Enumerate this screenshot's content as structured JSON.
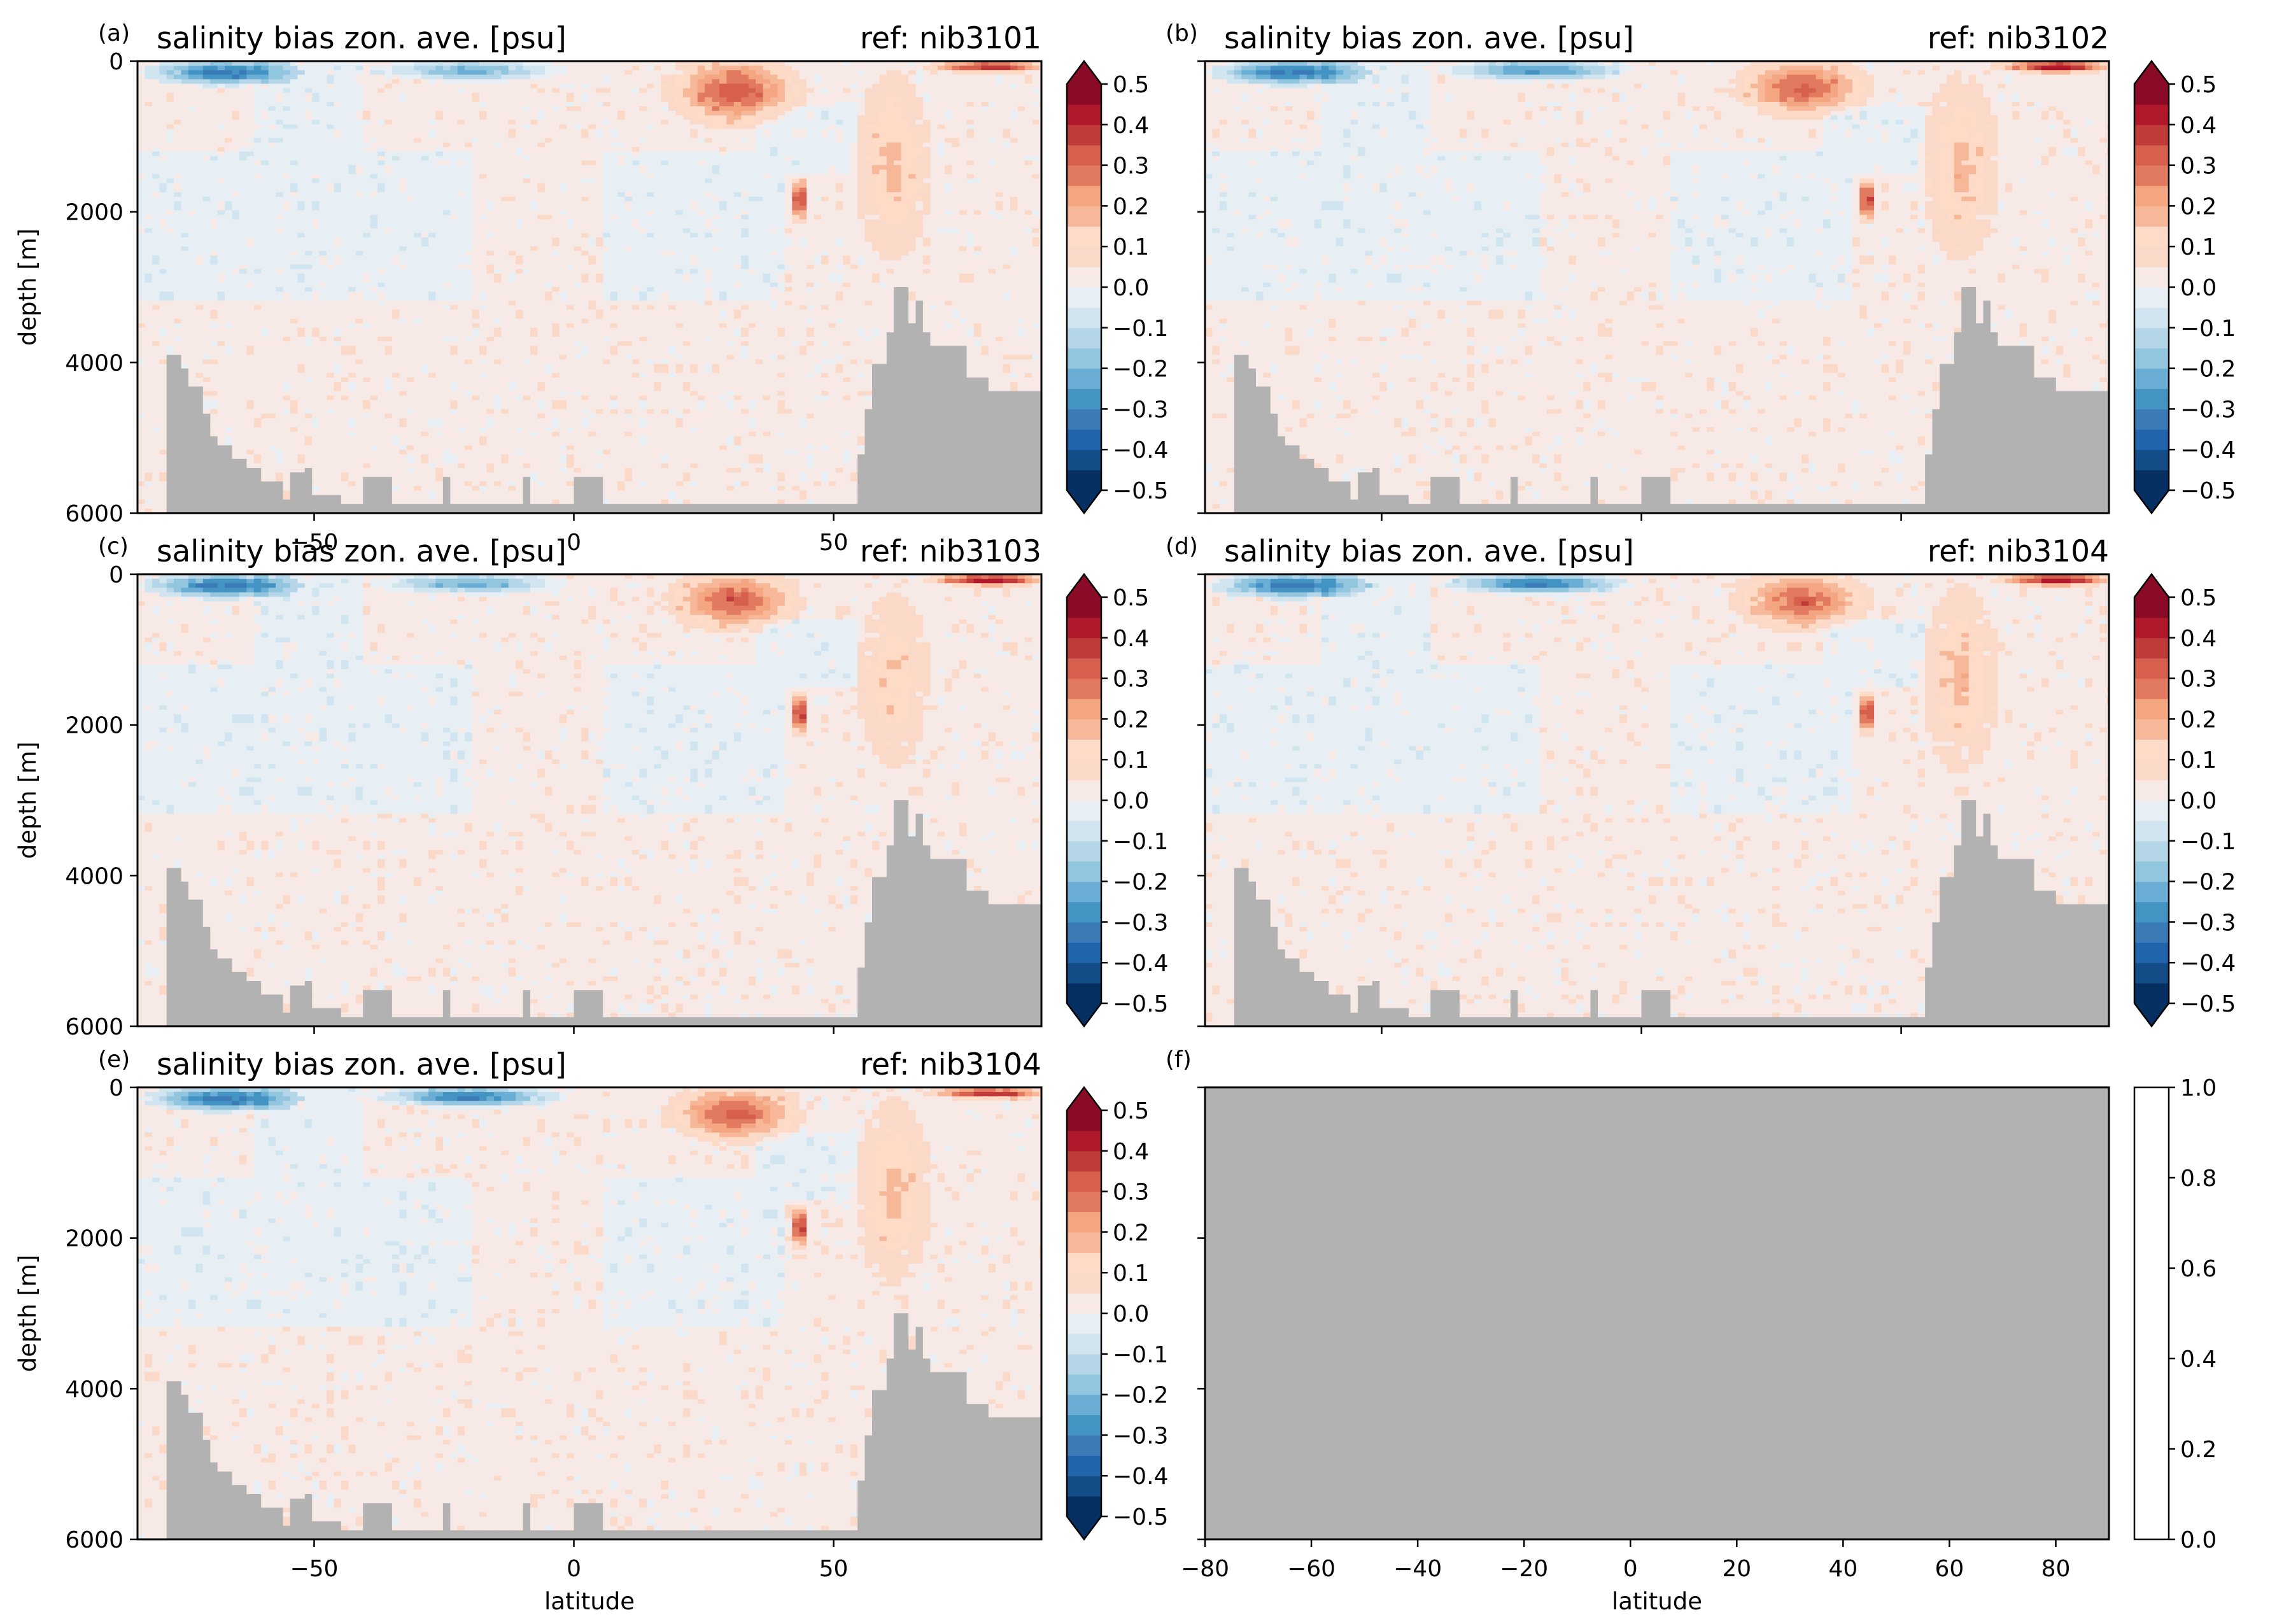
{
  "figure": {
    "background": "#ffffff",
    "land_color": "#b2b2b2",
    "frame_color": "#000000"
  },
  "chart_data": [
    {
      "panel": "(a)",
      "type": "heatmap",
      "title": "salinity bias zon. ave. [psu]",
      "title_right": "ref: nib3101",
      "ylabel": "depth [m]",
      "xlabel": "",
      "xlim": [
        -84,
        90
      ],
      "ylim": [
        6000,
        0
      ],
      "xticks": [
        -50,
        0,
        50
      ],
      "xtick_labels": [
        "−50",
        "0",
        "50"
      ],
      "yticks": [
        0,
        2000,
        4000,
        6000
      ],
      "ytick_labels": [
        "0",
        "2000",
        "4000",
        "6000"
      ],
      "colorbar": {
        "range": [
          -0.5,
          0.5
        ],
        "extend": "both",
        "ticks": [
          "0.5",
          "0.4",
          "0.3",
          "0.2",
          "0.1",
          "0.0",
          "−0.1",
          "−0.2",
          "−0.3",
          "−0.4",
          "−0.5"
        ]
      },
      "features": [
        {
          "name": "NH subtropical salty surface",
          "lat": [
            20,
            42
          ],
          "depth": [
            0,
            800
          ],
          "value": 0.32
        },
        {
          "name": "Mediterranean outflow",
          "lat": [
            42,
            45
          ],
          "depth": [
            1600,
            2100
          ],
          "value": 0.4
        },
        {
          "name": "Arctic surface",
          "lat": [
            70,
            90
          ],
          "depth": [
            0,
            150
          ],
          "value": 0.4
        },
        {
          "name": "Southern Ocean fresh surface",
          "lat": [
            -80,
            -55
          ],
          "depth": [
            0,
            300
          ],
          "value": -0.35
        },
        {
          "name": "SH fresh subsurface",
          "lat": [
            -35,
            -5
          ],
          "depth": [
            0,
            250
          ],
          "value": -0.25
        },
        {
          "name": "NH deep salty plume",
          "lat": [
            55,
            68
          ],
          "depth": [
            300,
            2500
          ],
          "value": 0.15
        }
      ]
    },
    {
      "panel": "(b)",
      "type": "heatmap",
      "title": "salinity bias zon. ave. [psu]",
      "title_right": "ref: nib3102",
      "ylabel": "",
      "xlabel": "",
      "xlim": [
        -84,
        90
      ],
      "ylim": [
        6000,
        0
      ],
      "xticks": [
        -50,
        0,
        50
      ],
      "xtick_labels": [],
      "yticks": [
        0,
        2000,
        4000,
        6000
      ],
      "ytick_labels": [],
      "colorbar": {
        "range": [
          -0.5,
          0.5
        ],
        "extend": "both",
        "ticks": [
          "0.5",
          "0.4",
          "0.3",
          "0.2",
          "0.1",
          "0.0",
          "−0.1",
          "−0.2",
          "−0.3",
          "−0.4",
          "−0.5"
        ]
      },
      "features": [
        {
          "name": "NH subtropical salty surface",
          "lat": [
            20,
            42
          ],
          "depth": [
            0,
            700
          ],
          "value": 0.3
        },
        {
          "name": "Mediterranean outflow",
          "lat": [
            42,
            45
          ],
          "depth": [
            1600,
            2100
          ],
          "value": 0.4
        },
        {
          "name": "Arctic surface",
          "lat": [
            70,
            90
          ],
          "depth": [
            0,
            150
          ],
          "value": 0.45
        },
        {
          "name": "Southern Ocean fresh surface",
          "lat": [
            -80,
            -55
          ],
          "depth": [
            0,
            300
          ],
          "value": -0.35
        },
        {
          "name": "SH fresh subsurface",
          "lat": [
            -35,
            -5
          ],
          "depth": [
            0,
            250
          ],
          "value": -0.3
        },
        {
          "name": "NH deep salty plume",
          "lat": [
            55,
            68
          ],
          "depth": [
            300,
            2500
          ],
          "value": 0.15
        }
      ]
    },
    {
      "panel": "(c)",
      "type": "heatmap",
      "title": "salinity bias zon. ave. [psu]",
      "title_right": "ref: nib3103",
      "ylabel": "depth [m]",
      "xlabel": "",
      "xlim": [
        -84,
        90
      ],
      "ylim": [
        6000,
        0
      ],
      "xticks": [
        -50,
        0,
        50
      ],
      "xtick_labels": [],
      "yticks": [
        0,
        2000,
        4000,
        6000
      ],
      "ytick_labels": [
        "0",
        "2000",
        "4000",
        "6000"
      ],
      "colorbar": {
        "range": [
          -0.5,
          0.5
        ],
        "extend": "both",
        "ticks": [
          "0.5",
          "0.4",
          "0.3",
          "0.2",
          "0.1",
          "0.0",
          "−0.1",
          "−0.2",
          "−0.3",
          "−0.4",
          "−0.5"
        ]
      },
      "features": [
        {
          "name": "NH subtropical salty surface",
          "lat": [
            20,
            42
          ],
          "depth": [
            0,
            700
          ],
          "value": 0.3
        },
        {
          "name": "Mediterranean outflow",
          "lat": [
            42,
            45
          ],
          "depth": [
            1600,
            2100
          ],
          "value": 0.4
        },
        {
          "name": "Arctic surface",
          "lat": [
            70,
            90
          ],
          "depth": [
            0,
            150
          ],
          "value": 0.45
        },
        {
          "name": "Southern Ocean fresh surface",
          "lat": [
            -80,
            -55
          ],
          "depth": [
            0,
            300
          ],
          "value": -0.35
        },
        {
          "name": "SH fresh subsurface",
          "lat": [
            -35,
            -5
          ],
          "depth": [
            0,
            250
          ],
          "value": -0.25
        },
        {
          "name": "NH deep salty plume",
          "lat": [
            55,
            68
          ],
          "depth": [
            300,
            2500
          ],
          "value": 0.12
        }
      ]
    },
    {
      "panel": "(d)",
      "type": "heatmap",
      "title": "salinity bias zon. ave. [psu]",
      "title_right": "ref: nib3104",
      "ylabel": "",
      "xlabel": "",
      "xlim": [
        -84,
        90
      ],
      "ylim": [
        6000,
        0
      ],
      "xticks": [
        -50,
        0,
        50
      ],
      "xtick_labels": [],
      "yticks": [
        0,
        2000,
        4000,
        6000
      ],
      "ytick_labels": [],
      "colorbar": {
        "range": [
          -0.5,
          0.5
        ],
        "extend": "both",
        "ticks": [
          "0.5",
          "0.4",
          "0.3",
          "0.2",
          "0.1",
          "0.0",
          "−0.1",
          "−0.2",
          "−0.3",
          "−0.4",
          "−0.5"
        ]
      },
      "features": [
        {
          "name": "NH subtropical salty surface",
          "lat": [
            20,
            42
          ],
          "depth": [
            0,
            700
          ],
          "value": 0.3
        },
        {
          "name": "Mediterranean outflow",
          "lat": [
            42,
            45
          ],
          "depth": [
            1600,
            2100
          ],
          "value": 0.4
        },
        {
          "name": "Arctic surface",
          "lat": [
            70,
            90
          ],
          "depth": [
            0,
            150
          ],
          "value": 0.45
        },
        {
          "name": "Southern Ocean fresh surface",
          "lat": [
            -80,
            -55
          ],
          "depth": [
            0,
            300
          ],
          "value": -0.35
        },
        {
          "name": "SH fresh subsurface",
          "lat": [
            -35,
            -5
          ],
          "depth": [
            0,
            250
          ],
          "value": -0.35
        },
        {
          "name": "NH deep salty plume",
          "lat": [
            55,
            68
          ],
          "depth": [
            300,
            2500
          ],
          "value": 0.15
        }
      ]
    },
    {
      "panel": "(e)",
      "type": "heatmap",
      "title": "salinity bias zon. ave. [psu]",
      "title_right": "ref: nib3104",
      "ylabel": "depth [m]",
      "xlabel": "latitude",
      "xlim": [
        -84,
        90
      ],
      "ylim": [
        6000,
        0
      ],
      "xticks": [
        -50,
        0,
        50
      ],
      "xtick_labels": [
        "−50",
        "0",
        "50"
      ],
      "yticks": [
        0,
        2000,
        4000,
        6000
      ],
      "ytick_labels": [
        "0",
        "2000",
        "4000",
        "6000"
      ],
      "colorbar": {
        "range": [
          -0.5,
          0.5
        ],
        "extend": "both",
        "ticks": [
          "0.5",
          "0.4",
          "0.3",
          "0.2",
          "0.1",
          "0.0",
          "−0.1",
          "−0.2",
          "−0.3",
          "−0.4",
          "−0.5"
        ]
      },
      "features": [
        {
          "name": "NH subtropical salty surface",
          "lat": [
            20,
            42
          ],
          "depth": [
            0,
            700
          ],
          "value": 0.3
        },
        {
          "name": "Mediterranean outflow",
          "lat": [
            42,
            45
          ],
          "depth": [
            1600,
            2100
          ],
          "value": 0.4
        },
        {
          "name": "Arctic surface",
          "lat": [
            70,
            90
          ],
          "depth": [
            0,
            150
          ],
          "value": 0.4
        },
        {
          "name": "Southern Ocean fresh surface",
          "lat": [
            -80,
            -55
          ],
          "depth": [
            0,
            300
          ],
          "value": -0.35
        },
        {
          "name": "SH fresh subsurface",
          "lat": [
            -35,
            -5
          ],
          "depth": [
            0,
            250
          ],
          "value": -0.35
        },
        {
          "name": "NH deep salty plume",
          "lat": [
            55,
            68
          ],
          "depth": [
            300,
            2500
          ],
          "value": 0.15
        }
      ]
    },
    {
      "panel": "(f)",
      "type": "heatmap",
      "title": "",
      "title_right": "",
      "ylabel": "",
      "xlabel": "latitude",
      "xlim": [
        -80,
        90
      ],
      "ylim": [
        6000,
        0
      ],
      "xticks": [
        -80,
        -60,
        -40,
        -20,
        0,
        20,
        40,
        60,
        80
      ],
      "xtick_labels": [
        "−80",
        "−60",
        "−40",
        "−20",
        "0",
        "20",
        "40",
        "60",
        "80"
      ],
      "yticks": [
        0,
        2000,
        4000,
        6000
      ],
      "ytick_labels": [],
      "empty": true,
      "colorbar": {
        "range": [
          0,
          1
        ],
        "extend": "neither",
        "ticks": [
          "1.0",
          "0.8",
          "0.6",
          "0.4",
          "0.2",
          "0.0"
        ]
      },
      "features": []
    }
  ],
  "bathymetry_depth_m": {
    "lat": [
      -84,
      -80,
      -78,
      -76,
      -74,
      -72,
      -70,
      -68,
      -66,
      -63,
      -60,
      -56,
      -55,
      -54,
      -52,
      -50,
      -45,
      -40,
      -39,
      -35,
      -30,
      -26,
      -25,
      -24,
      -20,
      -15,
      -11,
      -10,
      -9,
      -5,
      0,
      4,
      5,
      10,
      20,
      30,
      40,
      50,
      55,
      56,
      58,
      60,
      61,
      62,
      64,
      65,
      66,
      67,
      68,
      70,
      72,
      74,
      76,
      78,
      80,
      84,
      90
    ],
    "depth": [
      6000,
      6000,
      3900,
      4100,
      4300,
      4700,
      5000,
      5100,
      5300,
      5400,
      5600,
      5800,
      5400,
      5450,
      5400,
      5750,
      5900,
      5550,
      5550,
      5900,
      5900,
      5900,
      5550,
      5900,
      5900,
      5900,
      5900,
      5550,
      5900,
      5900,
      5550,
      5550,
      5900,
      5900,
      5900,
      5900,
      5900,
      5900,
      5200,
      4600,
      4000,
      3600,
      3100,
      3000,
      3300,
      3500,
      3200,
      3600,
      3800,
      3800,
      3800,
      3800,
      4200,
      4200,
      4400,
      4400,
      4400
    ]
  }
}
